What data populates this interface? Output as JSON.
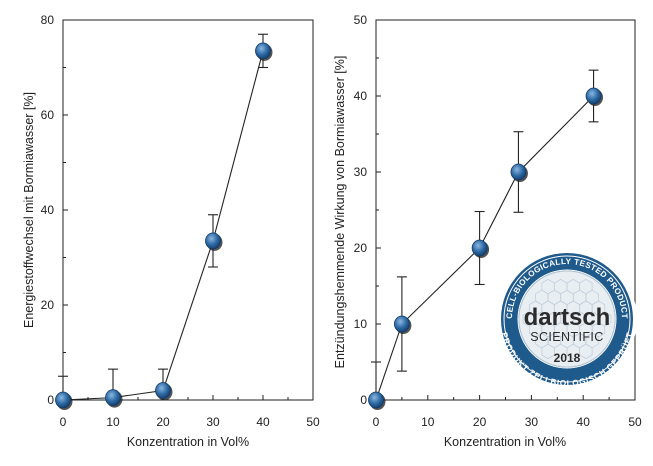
{
  "chart_data": [
    {
      "type": "line",
      "xlabel": "Konzentration in Vol%",
      "ylabel": "Energiestoffwechsel mit Bormiawasser [%]",
      "xlim": [
        0,
        50
      ],
      "ylim": [
        0,
        80
      ],
      "xticks": [
        0,
        10,
        20,
        30,
        40,
        50
      ],
      "yticks": [
        0,
        20,
        40,
        60,
        80
      ],
      "grid": false,
      "series": [
        {
          "x": [
            0,
            10,
            20,
            30,
            40
          ],
          "y": [
            0,
            0.5,
            2,
            33.5,
            73.5
          ],
          "error": [
            5,
            6,
            4.5,
            5.5,
            3.5
          ]
        }
      ]
    },
    {
      "type": "line",
      "xlabel": "Konzentration in Vol%",
      "ylabel": "Entzündungshemmende Wirkung von Bormiawasser [%]",
      "xlim": [
        0,
        50
      ],
      "ylim": [
        0,
        50
      ],
      "xticks": [
        0,
        10,
        20,
        30,
        40,
        50
      ],
      "yticks": [
        0,
        10,
        20,
        30,
        40,
        50
      ],
      "grid": false,
      "series": [
        {
          "x": [
            0,
            5,
            20,
            27.5,
            42
          ],
          "y": [
            0,
            10,
            20,
            30,
            40
          ],
          "error": [
            5,
            6.2,
            4.8,
            5.3,
            3.4
          ]
        }
      ]
    }
  ],
  "badge": {
    "brand_top": "dartsch",
    "brand_bottom": "SCIENTIFIC",
    "year": "2018",
    "ring_top": "CELL-BIOLOGICALLY TESTED PRODUCT",
    "ring_bottom": "PRODUKT ZELLBIOLOGISCH GEPRÜFT",
    "colors": {
      "ring": "#1f5a8c",
      "ring_light": "#d9e4ee",
      "center": "#e9eef3"
    }
  },
  "colors": {
    "marker": "#2d6aa5",
    "marker_dark": "#123a66",
    "marker_light": "#8cb7e0"
  }
}
